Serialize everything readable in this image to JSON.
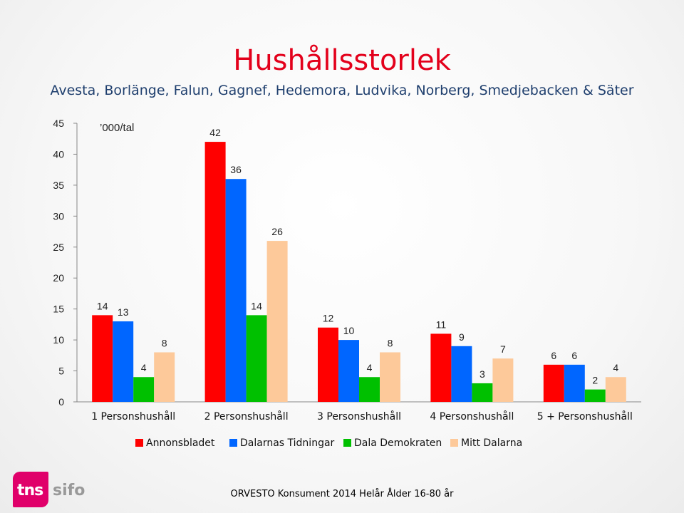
{
  "title": "Hushållsstorlek",
  "subtitle": "Avesta, Borlänge, Falun, Gagnef, Hedemora, Ludvika, Norberg, Smedjebacken & Säter",
  "footer": "ORVESTO Konsument 2014 Helår Ålder 16-80 år",
  "logo": {
    "left": "tns",
    "right": "sifo"
  },
  "chart_data": {
    "type": "bar",
    "unit_label": "’000/tal",
    "categories": [
      "1 Personshushåll",
      "2 Personshushåll",
      "3 Personshushåll",
      "4 Personshushåll",
      "5 + Personshushåll"
    ],
    "series": [
      {
        "name": "Annonsbladet",
        "color": "#ff0000",
        "values": [
          14,
          42,
          12,
          11,
          6
        ]
      },
      {
        "name": "Dalarnas Tidningar",
        "color": "#0066ff",
        "values": [
          13,
          36,
          10,
          9,
          6
        ]
      },
      {
        "name": "Dala Demokraten",
        "color": "#00c000",
        "values": [
          4,
          14,
          4,
          3,
          2
        ]
      },
      {
        "name": "Mitt Dalarna",
        "color": "#fdc99a",
        "values": [
          8,
          26,
          8,
          7,
          4
        ]
      }
    ],
    "ylim": [
      0,
      45
    ],
    "yticks": [
      0,
      5,
      10,
      15,
      20,
      25,
      30,
      35,
      40,
      45
    ],
    "legend_position": "bottom",
    "grid": false
  }
}
